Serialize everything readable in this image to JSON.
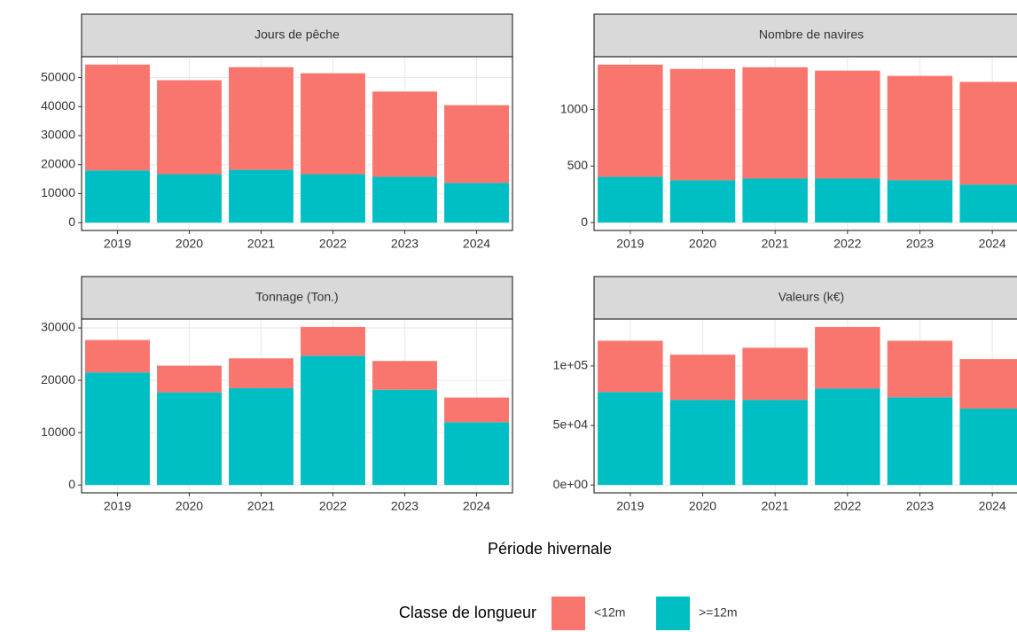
{
  "xlabel": "Période hivernale",
  "legend_title": "Classe de longueur",
  "chart_data": [
    {
      "type": "bar",
      "stacked": true,
      "title": "Jours de pêche",
      "categories": [
        "2019",
        "2020",
        "2021",
        "2022",
        "2023",
        "2024"
      ],
      "series": [
        {
          "name": "<12m",
          "color": "#f8766d",
          "values": [
            36500,
            32400,
            35400,
            34800,
            29400,
            26800
          ]
        },
        {
          "name": ">=12m",
          "color": "#00bfc4",
          "values": [
            18000,
            16700,
            18200,
            16700,
            15800,
            13700
          ]
        }
      ],
      "ylim": [
        -2700,
        57200
      ],
      "yticks": [
        0,
        10000,
        20000,
        30000,
        40000,
        50000
      ],
      "grid": true
    },
    {
      "type": "bar",
      "stacked": true,
      "title": "Nombre de navires",
      "categories": [
        "2019",
        "2020",
        "2021",
        "2022",
        "2023",
        "2024"
      ],
      "series": [
        {
          "name": "<12m",
          "color": "#f8766d",
          "values": [
            992,
            985,
            985,
            955,
            924,
            908
          ]
        },
        {
          "name": ">=12m",
          "color": "#00bfc4",
          "values": [
            405,
            374,
            389,
            389,
            374,
            336
          ]
        }
      ],
      "ylim": [
        -70,
        1467
      ],
      "yticks": [
        0,
        500,
        1000
      ],
      "grid": true
    },
    {
      "type": "bar",
      "stacked": true,
      "title": "Tonnage (Ton.)",
      "categories": [
        "2019",
        "2020",
        "2021",
        "2022",
        "2023",
        "2024"
      ],
      "series": [
        {
          "name": "<12m",
          "color": "#f8766d",
          "values": [
            6200,
            5100,
            5700,
            5500,
            5500,
            4700
          ]
        },
        {
          "name": ">=12m",
          "color": "#00bfc4",
          "values": [
            21500,
            17700,
            18500,
            24700,
            18200,
            12000
          ]
        }
      ],
      "ylim": [
        -1500,
        31700
      ],
      "yticks": [
        0,
        10000,
        20000,
        30000
      ],
      "grid": true
    },
    {
      "type": "bar",
      "stacked": true,
      "title": "Valeurs (k€)",
      "categories": [
        "2019",
        "2020",
        "2021",
        "2022",
        "2023",
        "2024"
      ],
      "series": [
        {
          "name": "<12m",
          "color": "#f8766d",
          "values": [
            43100,
            38000,
            43800,
            51800,
            47500,
            41600
          ]
        },
        {
          "name": ">=12m",
          "color": "#00bfc4",
          "values": [
            78100,
            71500,
            71500,
            81000,
            73700,
            64200
          ]
        }
      ],
      "ylim": [
        -6600,
        139400
      ],
      "yticks": [
        {
          "value": 0,
          "label": "0e+00"
        },
        {
          "value": 50000,
          "label": "5e+04"
        },
        {
          "value": 100000,
          "label": "1e+05"
        }
      ],
      "grid": true
    }
  ]
}
